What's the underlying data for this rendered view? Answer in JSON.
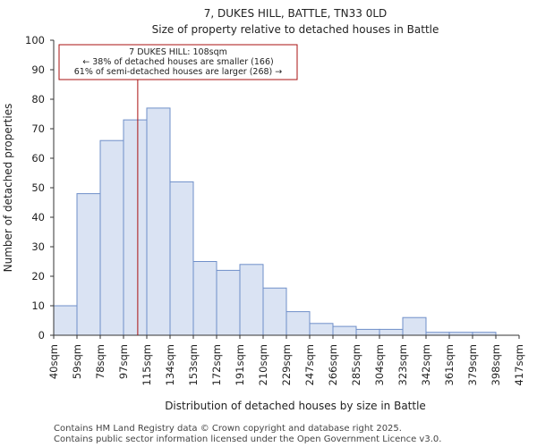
{
  "chart_data": {
    "type": "bar",
    "title": "7, DUKES HILL, BATTLE, TN33 0LD",
    "subtitle": "Size of property relative to detached houses in Battle",
    "xlabel": "Distribution of detached houses by size in Battle",
    "ylabel": "Number of detached properties",
    "x_tick_labels": [
      "40sqm",
      "59sqm",
      "78sqm",
      "97sqm",
      "115sqm",
      "134sqm",
      "153sqm",
      "172sqm",
      "191sqm",
      "210sqm",
      "229sqm",
      "247sqm",
      "266sqm",
      "285sqm",
      "304sqm",
      "323sqm",
      "342sqm",
      "361sqm",
      "379sqm",
      "398sqm",
      "417sqm"
    ],
    "values": [
      10,
      48,
      66,
      73,
      77,
      52,
      25,
      22,
      24,
      16,
      8,
      4,
      3,
      2,
      2,
      6,
      1,
      1,
      1,
      0
    ],
    "ylim": [
      0,
      100
    ],
    "yticks": [
      0,
      10,
      20,
      30,
      40,
      50,
      60,
      70,
      80,
      90,
      100
    ],
    "grid": false,
    "bar_fill": "#dae3f3",
    "bar_stroke": "#6f8fc9",
    "marker_color": "#aa1111",
    "marker": {
      "value_sqm": 108,
      "bin_edges": [
        97,
        115
      ],
      "annotation": [
        "7 DUKES HILL: 108sqm",
        "← 38% of detached houses are smaller (166)",
        "61% of semi-detached houses are larger (268) →"
      ]
    }
  },
  "footer": [
    "Contains HM Land Registry data © Crown copyright and database right 2025.",
    "Contains public sector information licensed under the Open Government Licence v3.0."
  ]
}
